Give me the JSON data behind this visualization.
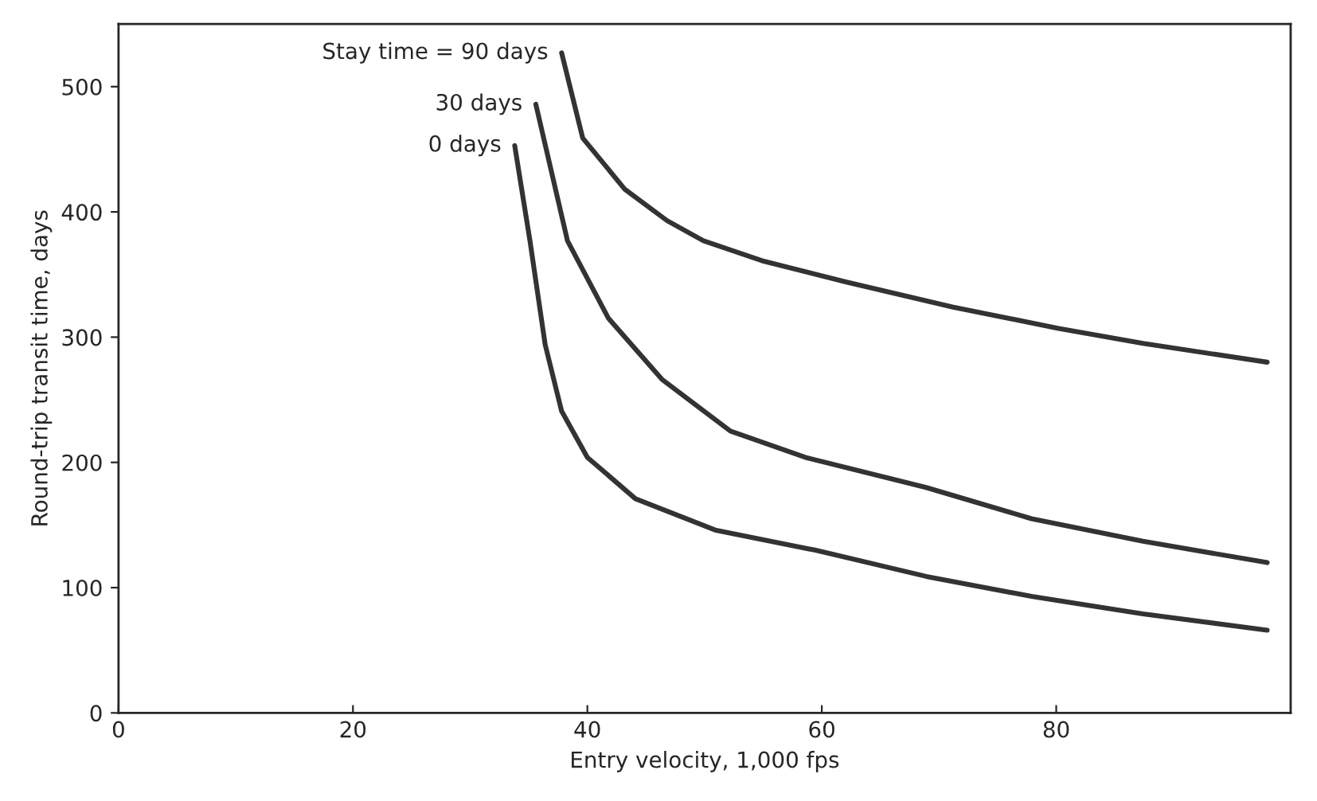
{
  "chart_data": {
    "type": "line",
    "xlabel": "Entry velocity, 1,000 fps",
    "ylabel": "Round-trip transit time, days",
    "xlim": [
      0,
      100
    ],
    "ylim": [
      0,
      550
    ],
    "xticks": [
      0,
      20,
      40,
      60,
      80
    ],
    "yticks": [
      0,
      100,
      200,
      300,
      400,
      500
    ],
    "grid": false,
    "marker": "none",
    "line_style": "solid",
    "series": [
      {
        "color": "#333333",
        "x": [
          33.8,
          35.1,
          36.4,
          37.8,
          40,
          44.1,
          50.9,
          59.4,
          68.9,
          77.9,
          87.4,
          98
        ],
        "values": [
          453,
          377,
          294,
          241,
          204,
          171,
          146,
          130,
          109,
          93,
          79,
          66
        ]
      },
      {
        "color": "#333333",
        "x": [
          35.6,
          38.3,
          41.8,
          46.4,
          52.2,
          58.6,
          68.9,
          77.9,
          87.4,
          98
        ],
        "values": [
          486,
          377,
          315,
          266,
          225,
          204,
          180,
          155,
          137,
          120
        ]
      },
      {
        "color": "#333333",
        "x": [
          37.8,
          39.6,
          43.2,
          46.8,
          49.9,
          54.9,
          62.1,
          71.2,
          80.2,
          87.4,
          98
        ],
        "values": [
          527,
          459,
          418,
          393,
          377,
          361,
          344,
          324,
          307,
          295,
          280
        ]
      }
    ],
    "annotations": [
      {
        "text": "0 days",
        "x": 33.8,
        "y": 453
      },
      {
        "text": "30 days",
        "x": 35.6,
        "y": 486
      },
      {
        "text": "Stay time = 90 days",
        "x": 37.8,
        "y": 527
      }
    ]
  }
}
